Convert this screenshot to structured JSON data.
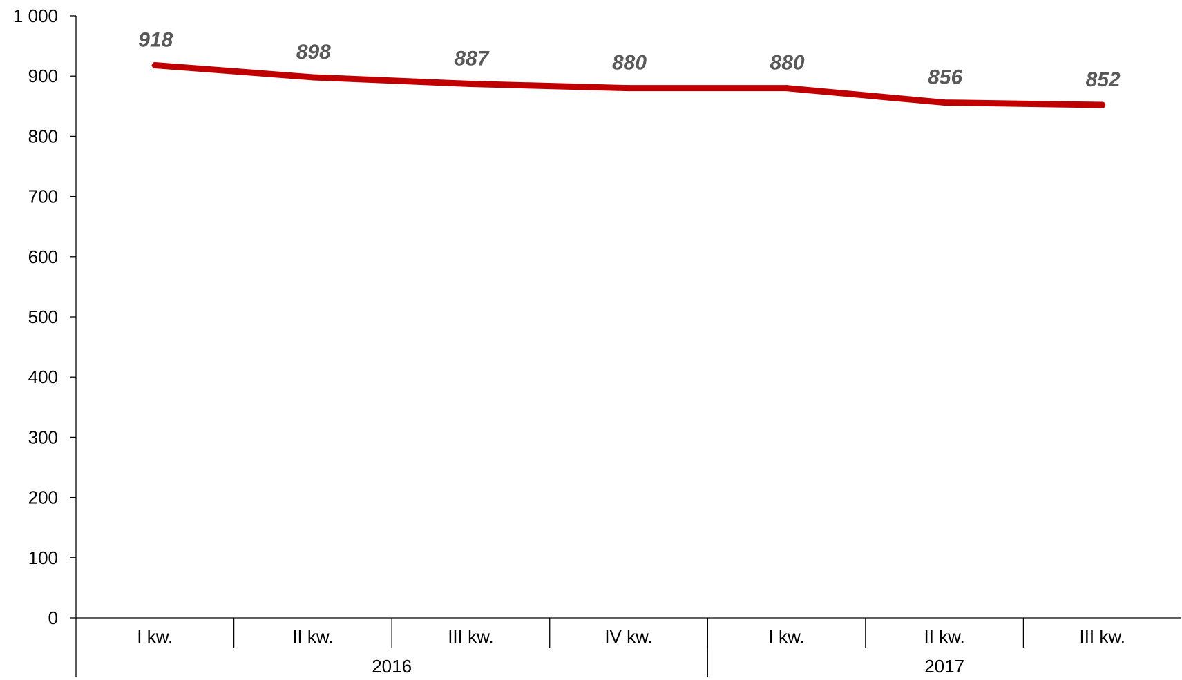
{
  "chart_data": {
    "type": "line",
    "categories": [
      "I kw.",
      "II kw.",
      "III kw.",
      "IV kw.",
      "I kw.",
      "II kw.",
      "III kw."
    ],
    "groups": [
      {
        "label": "2016",
        "span": 4
      },
      {
        "label": "2017",
        "span": 3
      }
    ],
    "series": [
      {
        "values": [
          918,
          898,
          887,
          880,
          880,
          856,
          852
        ]
      }
    ],
    "data_labels": [
      "918",
      "898",
      "887",
      "880",
      "880",
      "856",
      "852"
    ],
    "y_ticks": [
      0,
      100,
      200,
      300,
      400,
      500,
      600,
      700,
      800,
      900,
      1000
    ],
    "y_tick_labels": [
      "0",
      "100",
      "200",
      "300",
      "400",
      "500",
      "600",
      "700",
      "800",
      "900",
      "1 000"
    ],
    "ylim": [
      0,
      1000
    ],
    "grid": false,
    "legend": "none",
    "colors": {
      "line": "#C00000",
      "data_label": "#595959",
      "axis": "#000000"
    }
  }
}
